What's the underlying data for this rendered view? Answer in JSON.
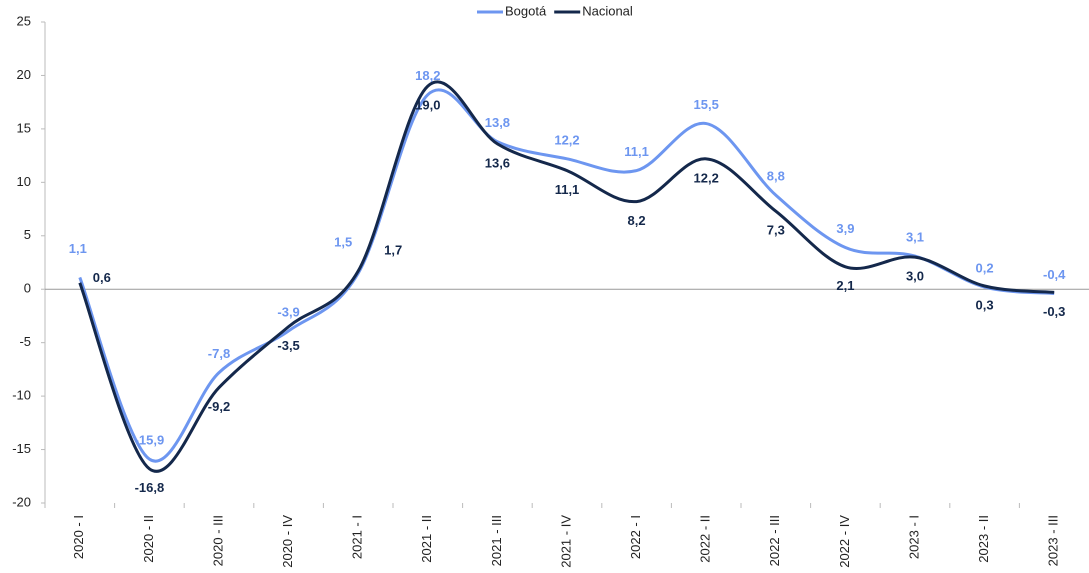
{
  "chart_data": {
    "type": "line",
    "categories": [
      "2020 - I",
      "2020 - II",
      "2020 - III",
      "2020 - IV",
      "2021 - I",
      "2021 - II",
      "2021 - III",
      "2021 - IV",
      "2022 - I",
      "2022 - II",
      "2022 - III",
      "2022 - IV",
      "2023 - I",
      "2023 - II",
      "2023 - III"
    ],
    "series": [
      {
        "name": "Bogotá",
        "color": "#6d96f0",
        "values": [
          1.1,
          -15.9,
          -7.8,
          -3.9,
          1.5,
          18.2,
          13.8,
          12.2,
          11.1,
          15.5,
          8.8,
          3.9,
          3.1,
          0.2,
          -0.4
        ],
        "value_labels": [
          "1,1",
          "-15,9",
          "-7,8",
          "-3,9",
          "1,5",
          "18,2",
          "13,8",
          "12,2",
          "11,1",
          "15,5",
          "8,8",
          "3,9",
          "3,1",
          "0,2",
          "-0,4"
        ]
      },
      {
        "name": "Nacional",
        "color": "#14284b",
        "values": [
          0.6,
          -16.8,
          -9.2,
          -3.5,
          1.7,
          19.0,
          13.6,
          11.1,
          8.2,
          12.2,
          7.3,
          2.1,
          3.0,
          0.3,
          -0.3
        ],
        "value_labels": [
          "0,6",
          "-16,8",
          "-9,2",
          "-3,5",
          "1,7",
          "19,0",
          "13,6",
          "11,1",
          "8,2",
          "12,2",
          "7,3",
          "2,1",
          "3,0",
          "0,3",
          "-0,3"
        ]
      }
    ],
    "ylim": [
      -20,
      25
    ],
    "yticks": [
      -20,
      -15,
      -10,
      -5,
      0,
      5,
      10,
      15,
      20,
      25
    ],
    "legend": "top"
  }
}
